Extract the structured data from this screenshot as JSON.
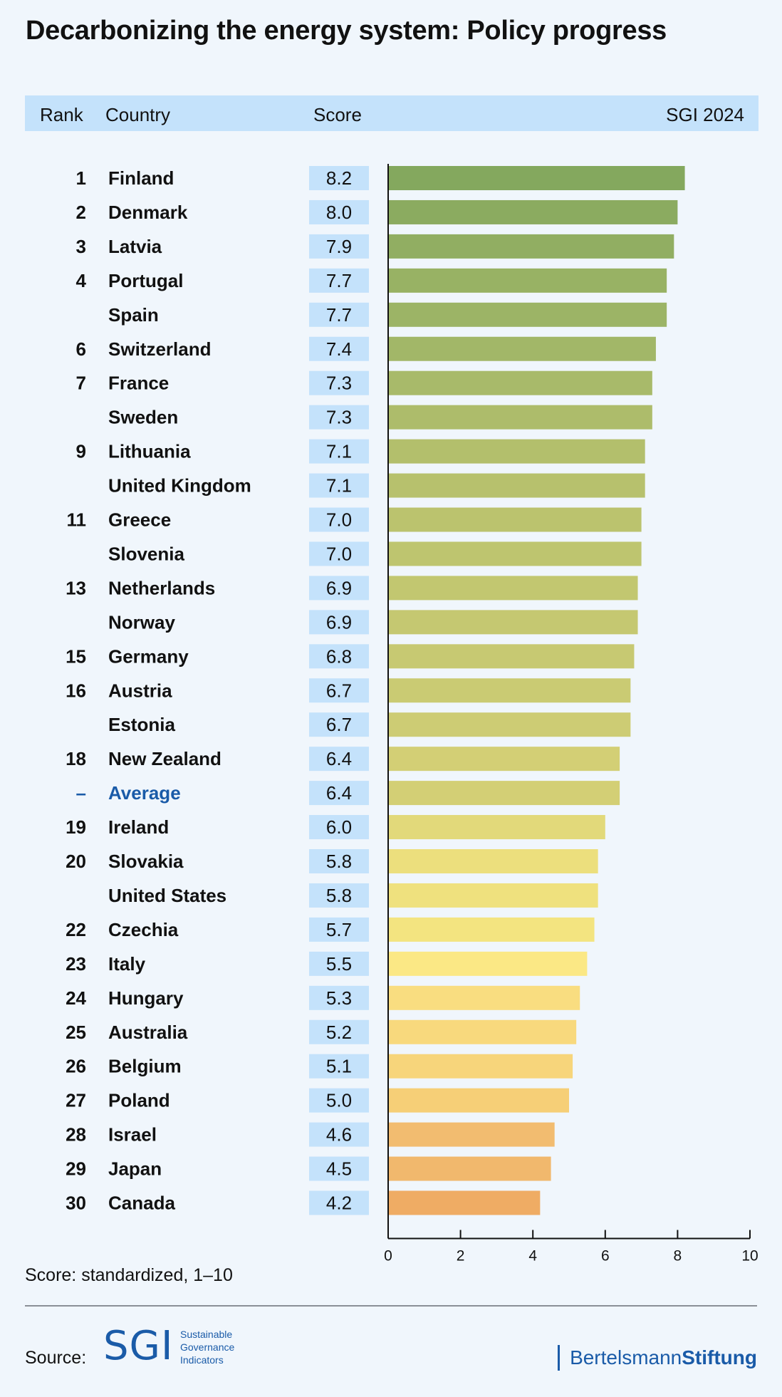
{
  "title": "Decarbonizing the energy system: Policy progress",
  "header": {
    "rank": "Rank",
    "country": "Country",
    "score": "Score",
    "edition": "SGI 2024"
  },
  "chart_data": {
    "type": "bar",
    "orientation": "horizontal",
    "title": "Decarbonizing the energy system: Policy progress",
    "xlim": [
      0,
      10
    ],
    "x_ticks": [
      "0",
      "2",
      "4",
      "6",
      "8",
      "10"
    ],
    "grid": false,
    "rows": [
      {
        "rank": "1",
        "country": "Finland",
        "score": "8.2",
        "value": 8.2,
        "color": "#84a85e"
      },
      {
        "rank": "2",
        "country": "Denmark",
        "score": "8.0",
        "value": 8.0,
        "color": "#8bab60"
      },
      {
        "rank": "3",
        "country": "Latvia",
        "score": "7.9",
        "value": 7.9,
        "color": "#91ae62"
      },
      {
        "rank": "4",
        "country": "Portugal",
        "score": "7.7",
        "value": 7.7,
        "color": "#98b264"
      },
      {
        "rank": "",
        "country": "Spain",
        "score": "7.7",
        "value": 7.7,
        "color": "#9cb466"
      },
      {
        "rank": "6",
        "country": "Switzerland",
        "score": "7.4",
        "value": 7.4,
        "color": "#a2b768"
      },
      {
        "rank": "7",
        "country": "France",
        "score": "7.3",
        "value": 7.3,
        "color": "#a8ba6a"
      },
      {
        "rank": "",
        "country": "Sweden",
        "score": "7.3",
        "value": 7.3,
        "color": "#adbc6b"
      },
      {
        "rank": "9",
        "country": "Lithuania",
        "score": "7.1",
        "value": 7.1,
        "color": "#b3bf6c"
      },
      {
        "rank": "",
        "country": "United Kingdom",
        "score": "7.1",
        "value": 7.1,
        "color": "#b7c16d"
      },
      {
        "rank": "11",
        "country": "Greece",
        "score": "7.0",
        "value": 7.0,
        "color": "#bbc36e"
      },
      {
        "rank": "",
        "country": "Slovenia",
        "score": "7.0",
        "value": 7.0,
        "color": "#bec56f"
      },
      {
        "rank": "13",
        "country": "Netherlands",
        "score": "6.9",
        "value": 6.9,
        "color": "#c2c770"
      },
      {
        "rank": "",
        "country": "Norway",
        "score": "6.9",
        "value": 6.9,
        "color": "#c5c871"
      },
      {
        "rank": "15",
        "country": "Germany",
        "score": "6.8",
        "value": 6.8,
        "color": "#c7c972"
      },
      {
        "rank": "16",
        "country": "Austria",
        "score": "6.7",
        "value": 6.7,
        "color": "#cacb73"
      },
      {
        "rank": "",
        "country": "Estonia",
        "score": "6.7",
        "value": 6.7,
        "color": "#cdcc74"
      },
      {
        "rank": "18",
        "country": "New Zealand",
        "score": "6.4",
        "value": 6.4,
        "color": "#d3cf75"
      },
      {
        "rank": "–",
        "country": "Average",
        "score": "6.4",
        "value": 6.4,
        "color": "#d3cf75",
        "highlight": true
      },
      {
        "rank": "19",
        "country": "Ireland",
        "score": "6.0",
        "value": 6.0,
        "color": "#e2d97a"
      },
      {
        "rank": "20",
        "country": "Slovakia",
        "score": "5.8",
        "value": 5.8,
        "color": "#ecdf7d"
      },
      {
        "rank": "",
        "country": "United States",
        "score": "5.8",
        "value": 5.8,
        "color": "#efe17e"
      },
      {
        "rank": "22",
        "country": "Czechia",
        "score": "5.7",
        "value": 5.7,
        "color": "#f3e480"
      },
      {
        "rank": "23",
        "country": "Italy",
        "score": "5.5",
        "value": 5.5,
        "color": "#fbe885"
      },
      {
        "rank": "24",
        "country": "Hungary",
        "score": "5.3",
        "value": 5.3,
        "color": "#f9dd80"
      },
      {
        "rank": "25",
        "country": "Australia",
        "score": "5.2",
        "value": 5.2,
        "color": "#f8d97d"
      },
      {
        "rank": "26",
        "country": "Belgium",
        "score": "5.1",
        "value": 5.1,
        "color": "#f7d57b"
      },
      {
        "rank": "27",
        "country": "Poland",
        "score": "5.0",
        "value": 5.0,
        "color": "#f6cf77"
      },
      {
        "rank": "28",
        "country": "Israel",
        "score": "4.6",
        "value": 4.6,
        "color": "#f2bc70"
      },
      {
        "rank": "29",
        "country": "Japan",
        "score": "4.5",
        "value": 4.5,
        "color": "#f1b86d"
      },
      {
        "rank": "30",
        "country": "Canada",
        "score": "4.2",
        "value": 4.2,
        "color": "#efac64"
      }
    ]
  },
  "note": "Score: standardized, 1–10",
  "footer": {
    "source_label": "Source:",
    "sgi_letters": "SGI",
    "sgi_line1": "Sustainable",
    "sgi_line2": "Governance",
    "sgi_line3": "Indicators",
    "bs_regular": "Bertelsmann",
    "bs_bold": "Stiftung"
  },
  "colors": {
    "header_band": "#c4e2fb",
    "score_box": "#c4e2fb",
    "average_text": "#1a5ba8",
    "brand_blue": "#1a5ba8",
    "background": "#f0f6fc"
  }
}
